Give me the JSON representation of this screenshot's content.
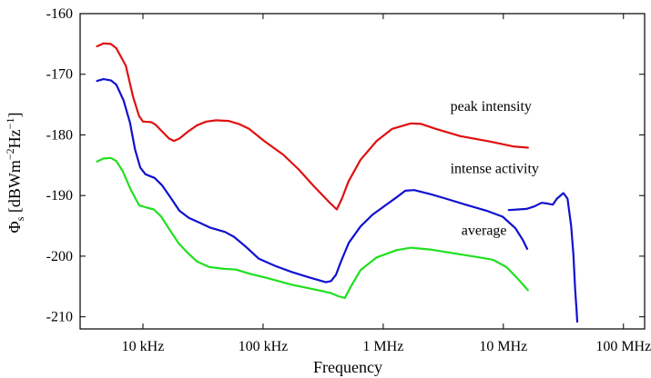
{
  "chart_data": {
    "type": "line",
    "title": "",
    "xlabel": "Frequency",
    "ylabel_parts": [
      "Φ",
      "s",
      " [dBWm",
      "−2",
      "Hz",
      "−1",
      "]"
    ],
    "xscale": "log",
    "xlim_hz": [
      3000,
      150000000
    ],
    "ylim": [
      -212,
      -160
    ],
    "xticks": [
      {
        "value": 10000,
        "label": "10 kHz"
      },
      {
        "value": 100000,
        "label": "100 kHz"
      },
      {
        "value": 1000000,
        "label": "1 MHz"
      },
      {
        "value": 10000000,
        "label": "10 MHz"
      },
      {
        "value": 100000000,
        "label": "100 MHz"
      }
    ],
    "yticks": [
      {
        "value": -160,
        "label": "-160"
      },
      {
        "value": -170,
        "label": "-170"
      },
      {
        "value": -180,
        "label": "-180"
      },
      {
        "value": -190,
        "label": "-190"
      },
      {
        "value": -200,
        "label": "-200"
      },
      {
        "value": -210,
        "label": "-210"
      }
    ],
    "grid": false,
    "legend": "none",
    "series": [
      {
        "name": "peak intensity",
        "color": "#e01010",
        "segments": [
          [
            [
              4150,
              -165.4
            ],
            [
              4700,
              -164.9
            ],
            [
              5400,
              -165.0
            ],
            [
              6000,
              -165.7
            ],
            [
              7200,
              -168.6
            ],
            [
              8300,
              -173.8
            ],
            [
              9300,
              -176.9
            ],
            [
              10000,
              -177.8
            ],
            [
              11700,
              -177.9
            ],
            [
              12700,
              -178.3
            ],
            [
              14400,
              -179.4
            ],
            [
              16500,
              -180.6
            ],
            [
              18100,
              -181.0
            ],
            [
              20100,
              -180.6
            ],
            [
              23900,
              -179.4
            ],
            [
              28300,
              -178.4
            ],
            [
              33700,
              -177.8
            ],
            [
              40700,
              -177.6
            ],
            [
              51500,
              -177.7
            ],
            [
              62800,
              -178.2
            ],
            [
              76500,
              -179.0
            ],
            [
              102000,
              -181.0
            ],
            [
              148000,
              -183.3
            ],
            [
              198000,
              -185.7
            ],
            [
              266000,
              -188.5
            ],
            [
              352000,
              -191.0
            ],
            [
              411000,
              -192.3
            ],
            [
              454000,
              -190.5
            ],
            [
              514000,
              -187.7
            ],
            [
              648000,
              -184.1
            ],
            [
              882000,
              -181.0
            ],
            [
              1190000,
              -179.0
            ],
            [
              1700000,
              -178.1
            ],
            [
              2070000,
              -178.2
            ],
            [
              2740000,
              -179.0
            ],
            [
              4380000,
              -180.2
            ],
            [
              7770000,
              -181.1
            ],
            [
              12000000,
              -181.9
            ],
            [
              16000000,
              -182.1
            ]
          ]
        ]
      },
      {
        "name": "intense activity",
        "color": "#1010d0",
        "segments": [
          [
            [
              4150,
              -171.1
            ],
            [
              4700,
              -170.8
            ],
            [
              5400,
              -171.0
            ],
            [
              6000,
              -171.7
            ],
            [
              6900,
              -174.3
            ],
            [
              7800,
              -178.0
            ],
            [
              8600,
              -182.4
            ],
            [
              9500,
              -185.4
            ],
            [
              10500,
              -186.5
            ],
            [
              12500,
              -187.1
            ],
            [
              14400,
              -188.3
            ],
            [
              17200,
              -190.5
            ],
            [
              20100,
              -192.5
            ],
            [
              24200,
              -193.7
            ],
            [
              29800,
              -194.5
            ],
            [
              36400,
              -195.3
            ],
            [
              48000,
              -196.0
            ],
            [
              57300,
              -196.8
            ],
            [
              71400,
              -198.4
            ],
            [
              91900,
              -200.4
            ],
            [
              126000,
              -201.6
            ],
            [
              173000,
              -202.6
            ],
            [
              242000,
              -203.5
            ],
            [
              333000,
              -204.3
            ],
            [
              368000,
              -204.1
            ],
            [
              404000,
              -203.1
            ],
            [
              447000,
              -200.8
            ],
            [
              517000,
              -197.8
            ],
            [
              648000,
              -195.1
            ],
            [
              812000,
              -193.2
            ],
            [
              1030000,
              -191.7
            ],
            [
              1290000,
              -190.3
            ],
            [
              1530000,
              -189.2
            ],
            [
              1810000,
              -189.1
            ],
            [
              2520000,
              -189.8
            ],
            [
              3300000,
              -190.5
            ],
            [
              4840000,
              -191.5
            ],
            [
              7250000,
              -192.5
            ],
            [
              9880000,
              -193.5
            ],
            [
              12600000,
              -195.4
            ],
            [
              14500000,
              -197.3
            ],
            [
              15800000,
              -198.8
            ]
          ],
          [
            [
              11100000,
              -192.4
            ],
            [
              13300000,
              -192.3
            ],
            [
              15600000,
              -192.2
            ],
            [
              18100000,
              -191.8
            ],
            [
              20800000,
              -191.2
            ],
            [
              23000000,
              -191.3
            ],
            [
              25800000,
              -191.5
            ],
            [
              28000000,
              -190.5
            ],
            [
              31600000,
              -189.6
            ],
            [
              34200000,
              -190.5
            ],
            [
              36700000,
              -195.0
            ],
            [
              38300000,
              -199.8
            ],
            [
              39600000,
              -205.5
            ],
            [
              40700000,
              -209.0
            ],
            [
              41200000,
              -210.8
            ]
          ]
        ]
      },
      {
        "name": "average",
        "color": "#20e020",
        "segments": [
          [
            [
              4150,
              -184.4
            ],
            [
              4700,
              -183.9
            ],
            [
              5400,
              -183.8
            ],
            [
              6000,
              -184.3
            ],
            [
              6800,
              -186.0
            ],
            [
              7900,
              -189.0
            ],
            [
              9300,
              -191.6
            ],
            [
              10800,
              -192.0
            ],
            [
              12300,
              -192.3
            ],
            [
              14100,
              -193.4
            ],
            [
              16400,
              -195.4
            ],
            [
              19700,
              -197.8
            ],
            [
              23400,
              -199.4
            ],
            [
              28300,
              -200.9
            ],
            [
              35600,
              -201.8
            ],
            [
              47500,
              -202.1
            ],
            [
              59100,
              -202.2
            ],
            [
              77400,
              -202.9
            ],
            [
              108000,
              -203.6
            ],
            [
              173000,
              -204.7
            ],
            [
              286000,
              -205.6
            ],
            [
              368000,
              -206.1
            ],
            [
              423000,
              -206.6
            ],
            [
              479000,
              -206.9
            ],
            [
              538000,
              -205.0
            ],
            [
              648000,
              -202.3
            ],
            [
              882000,
              -200.2
            ],
            [
              1290000,
              -199.0
            ],
            [
              1700000,
              -198.6
            ],
            [
              2460000,
              -198.9
            ],
            [
              3790000,
              -199.5
            ],
            [
              6340000,
              -200.2
            ],
            [
              8200000,
              -200.6
            ],
            [
              10600000,
              -201.8
            ],
            [
              12900000,
              -203.5
            ],
            [
              16000000,
              -205.6
            ]
          ]
        ]
      }
    ],
    "annotations": [
      {
        "text": "peak intensity",
        "x": 3620000,
        "y": -176.0
      },
      {
        "text": "intense activity",
        "x": 3620000,
        "y": -186.3
      },
      {
        "text": "average",
        "x": 4480000,
        "y": -196.5
      }
    ]
  }
}
